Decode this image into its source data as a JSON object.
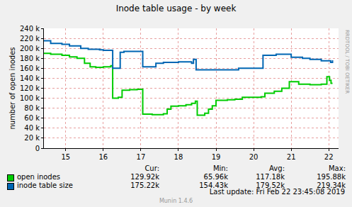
{
  "chart_data": {
    "type": "line",
    "title": "Inode table usage - by week",
    "y_label": "number of open inodes",
    "xlim": [
      14.42,
      22.26
    ],
    "xticks": [
      15,
      16,
      17,
      18,
      19,
      20,
      21,
      22
    ],
    "ylim": [
      0,
      240000
    ],
    "yticks": [
      0,
      {
        "value": 20000,
        "label": "20 k"
      },
      {
        "value": 40000,
        "label": "40 k"
      },
      {
        "value": 60000,
        "label": "60 k"
      },
      {
        "value": 80000,
        "label": "80 k"
      },
      {
        "value": 100000,
        "label": "100 k"
      },
      {
        "value": 120000,
        "label": "120 k"
      },
      {
        "value": 140000,
        "label": "140 k"
      },
      {
        "value": 160000,
        "label": "160 k"
      },
      {
        "value": 180000,
        "label": "180 k"
      },
      {
        "value": 200000,
        "label": "200 k"
      },
      {
        "value": 220000,
        "label": "220 k"
      },
      {
        "value": 240000,
        "label": "240 k"
      }
    ],
    "grid": true,
    "stat_headers": [
      "Cur:",
      "Min:",
      "Avg:",
      "Max:"
    ],
    "series": [
      {
        "name": "open inodes",
        "color": "#00cc00",
        "line_style": "step",
        "x": [
          14.42,
          14.6,
          14.9,
          15.1,
          15.3,
          15.5,
          15.65,
          15.8,
          16.0,
          16.2,
          16.25,
          16.4,
          16.5,
          16.7,
          16.9,
          17.05,
          17.3,
          17.6,
          17.7,
          17.8,
          18.0,
          18.2,
          18.35,
          18.45,
          18.5,
          18.7,
          18.8,
          18.9,
          19.0,
          19.3,
          19.5,
          19.7,
          20.2,
          20.3,
          20.55,
          20.75,
          20.95,
          21.2,
          21.5,
          21.8,
          21.95,
          22.02,
          22.06,
          22.1
        ],
        "values": [
          190000,
          188000,
          186000,
          183000,
          180000,
          170000,
          163000,
          162000,
          163000,
          165000,
          100000,
          102000,
          116000,
          117000,
          118000,
          68000,
          67000,
          69000,
          78000,
          84000,
          85000,
          87000,
          90000,
          94000,
          66000,
          70000,
          78000,
          85000,
          96000,
          97000,
          98000,
          102000,
          103000,
          110000,
          114000,
          120000,
          133000,
          128000,
          127000,
          128000,
          143000,
          136000,
          130000,
          130000
        ],
        "stats": [
          "129.92k",
          "65.96k",
          "117.18k",
          "195.88k"
        ]
      },
      {
        "name": "inode table size",
        "color": "#0066b3",
        "line_style": "step",
        "x": [
          14.42,
          14.6,
          14.9,
          15.1,
          15.4,
          15.6,
          15.9,
          16.0,
          16.25,
          16.45,
          16.55,
          17.05,
          17.4,
          17.6,
          18.0,
          18.35,
          18.4,
          18.47,
          19.0,
          19.6,
          20.25,
          20.6,
          21.0,
          21.3,
          21.5,
          21.8,
          22.05,
          22.1
        ],
        "values": [
          215000,
          210000,
          208000,
          205000,
          200000,
          198000,
          197000,
          196000,
          160000,
          192000,
          194000,
          163000,
          170000,
          172000,
          173000,
          170000,
          178000,
          157000,
          157000,
          160000,
          186000,
          188000,
          182000,
          180000,
          178000,
          175000,
          172000,
          176000
        ],
        "stats": [
          "175.22k",
          "154.43k",
          "179.52k",
          "219.34k"
        ]
      }
    ],
    "annotations": [
      "RRDTOOL / TOBI OETIKER",
      "Last update: Fri Feb 22 23:45:08 2019",
      "Munin 1.4.6"
    ]
  }
}
